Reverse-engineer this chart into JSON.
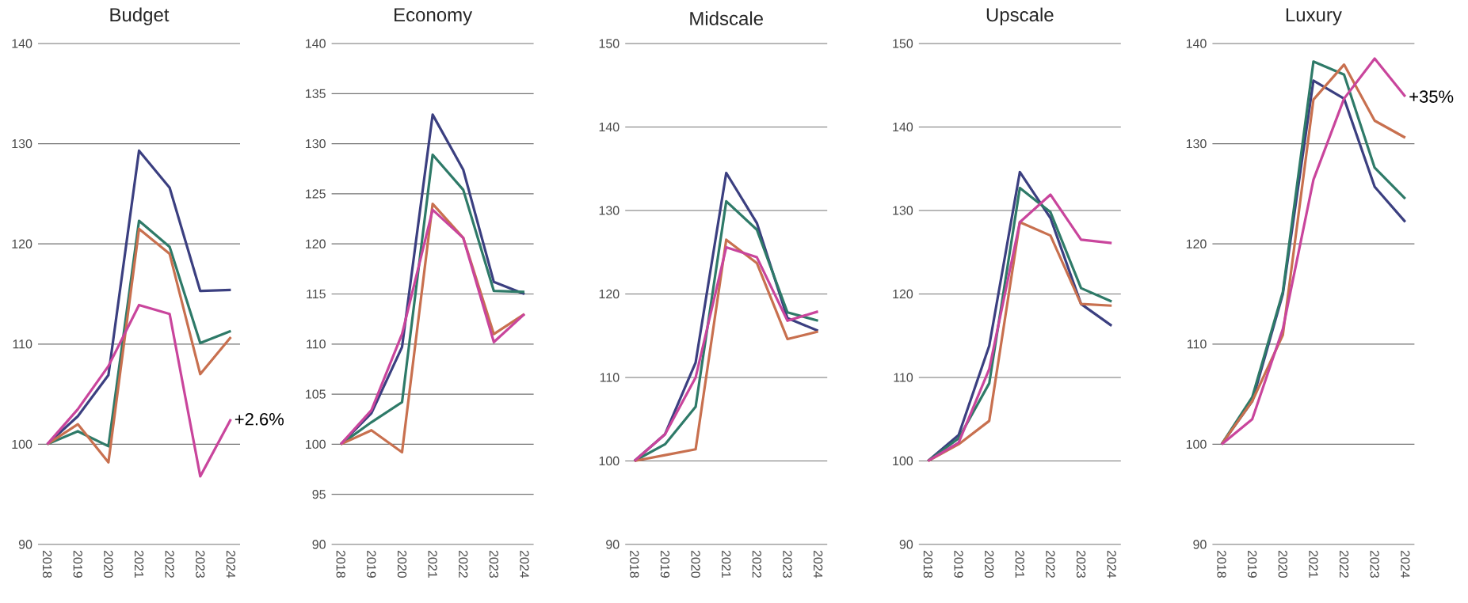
{
  "chart_data": [
    {
      "type": "line",
      "title": "Budget",
      "categories": [
        "2018",
        "2019",
        "2020",
        "2021",
        "2022",
        "2023",
        "2024"
      ],
      "ylim": [
        90,
        140
      ],
      "yticks": [
        90,
        100,
        110,
        120,
        130,
        140
      ],
      "grid": "y",
      "series": [
        {
          "color": "#3b3f80",
          "values": [
            100,
            102.8,
            106.9,
            129.3,
            125.6,
            115.3,
            115.4
          ]
        },
        {
          "color": "#2e7a68",
          "values": [
            100,
            101.3,
            99.8,
            122.3,
            119.7,
            110.1,
            111.3
          ]
        },
        {
          "color": "#c8704f",
          "values": [
            100,
            102.0,
            98.2,
            121.5,
            119.0,
            107.0,
            110.7
          ]
        },
        {
          "color": "#c9459c",
          "values": [
            100,
            103.5,
            107.8,
            113.9,
            113.0,
            96.8,
            102.5
          ]
        }
      ],
      "annotations": [
        {
          "text": "+2.6%",
          "x": "2024",
          "y": 102.5
        }
      ]
    },
    {
      "type": "line",
      "title": "Economy",
      "categories": [
        "2018",
        "2019",
        "2020",
        "2021",
        "2022",
        "2023",
        "2024"
      ],
      "ylim": [
        90,
        140
      ],
      "yticks": [
        90,
        95,
        100,
        105,
        110,
        115,
        120,
        125,
        130,
        135,
        140
      ],
      "grid": "y",
      "series": [
        {
          "color": "#3b3f80",
          "values": [
            100,
            103.1,
            109.7,
            132.9,
            127.4,
            116.2,
            115.0
          ]
        },
        {
          "color": "#2e7a68",
          "values": [
            100,
            102.2,
            104.2,
            128.9,
            125.4,
            115.3,
            115.2
          ]
        },
        {
          "color": "#c8704f",
          "values": [
            100,
            101.4,
            99.2,
            124.0,
            120.6,
            111.0,
            113.0
          ]
        },
        {
          "color": "#c9459c",
          "values": [
            100,
            103.4,
            111.0,
            123.4,
            120.6,
            110.2,
            113.0
          ]
        }
      ]
    },
    {
      "type": "line",
      "title": "Midscale",
      "categories": [
        "2018",
        "2019",
        "2020",
        "2021",
        "2022",
        "2023",
        "2024"
      ],
      "ylim": [
        90,
        150
      ],
      "yticks": [
        90,
        100,
        110,
        120,
        130,
        140,
        150
      ],
      "grid": "y",
      "series": [
        {
          "color": "#3b3f80",
          "values": [
            100,
            103.2,
            111.8,
            134.5,
            128.5,
            117.1,
            115.6
          ]
        },
        {
          "color": "#2e7a68",
          "values": [
            100,
            102.0,
            106.5,
            131.1,
            127.7,
            117.8,
            116.8
          ]
        },
        {
          "color": "#c8704f",
          "values": [
            100,
            100.7,
            101.4,
            126.5,
            123.7,
            114.6,
            115.5
          ]
        },
        {
          "color": "#c9459c",
          "values": [
            100,
            103.2,
            110.0,
            125.6,
            124.4,
            116.8,
            117.9
          ]
        }
      ]
    },
    {
      "type": "line",
      "title": "Upscale",
      "categories": [
        "2018",
        "2019",
        "2020",
        "2021",
        "2022",
        "2023",
        "2024"
      ],
      "ylim": [
        90,
        150
      ],
      "yticks": [
        90,
        100,
        110,
        120,
        130,
        140,
        150
      ],
      "grid": "y",
      "series": [
        {
          "color": "#3b3f80",
          "values": [
            100,
            103.1,
            113.8,
            134.6,
            129.1,
            118.8,
            116.2
          ]
        },
        {
          "color": "#2e7a68",
          "values": [
            100,
            102.7,
            109.3,
            132.7,
            129.8,
            120.7,
            119.1
          ]
        },
        {
          "color": "#c8704f",
          "values": [
            100,
            102.0,
            104.8,
            128.6,
            127.0,
            118.8,
            118.6
          ]
        },
        {
          "color": "#c9459c",
          "values": [
            100,
            102.2,
            111.0,
            128.6,
            131.9,
            126.5,
            126.1
          ]
        }
      ]
    },
    {
      "type": "line",
      "title": "Luxury",
      "categories": [
        "2018",
        "2019",
        "2020",
        "2021",
        "2022",
        "2023",
        "2024"
      ],
      "ylim": [
        90,
        140
      ],
      "yticks": [
        90,
        100,
        110,
        120,
        130,
        140
      ],
      "grid": "y",
      "series": [
        {
          "color": "#3b3f80",
          "values": [
            100,
            104.3,
            115.0,
            136.3,
            134.5,
            125.7,
            122.2
          ]
        },
        {
          "color": "#2e7a68",
          "values": [
            100,
            104.7,
            115.2,
            138.2,
            136.9,
            127.6,
            124.5
          ]
        },
        {
          "color": "#c8704f",
          "values": [
            100,
            104.3,
            110.9,
            134.4,
            137.9,
            132.3,
            130.6
          ]
        },
        {
          "color": "#c9459c",
          "values": [
            100,
            102.5,
            111.5,
            126.4,
            134.5,
            138.5,
            134.7
          ]
        }
      ],
      "annotations": [
        {
          "text": "+35%",
          "x": "2024",
          "y": 134.7
        }
      ]
    }
  ]
}
